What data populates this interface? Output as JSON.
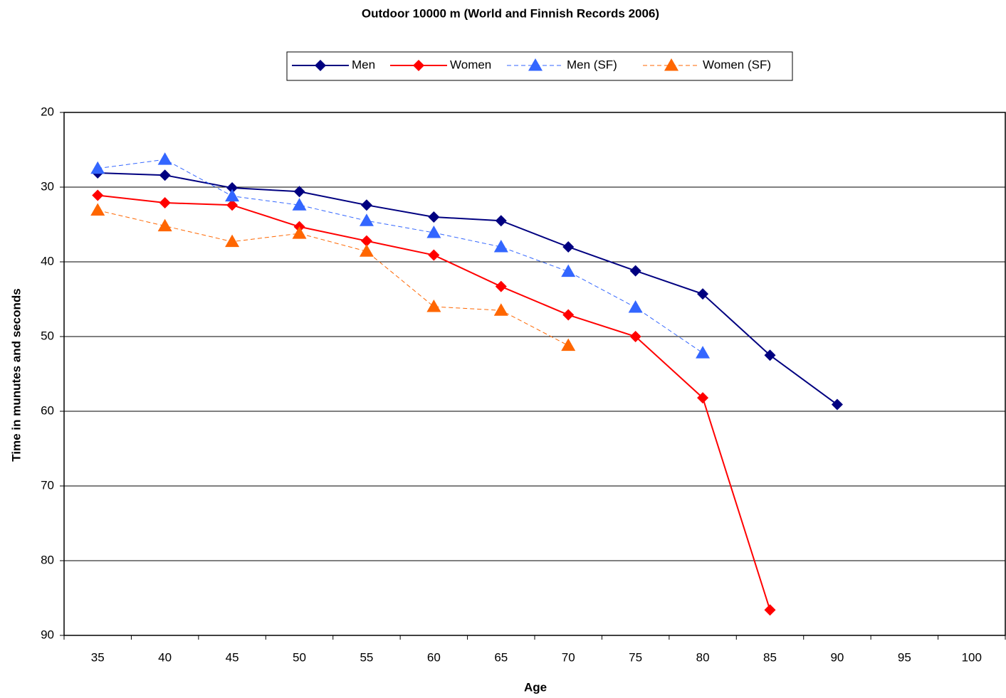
{
  "chart_data": {
    "type": "line",
    "title": "Outdoor 10000 m (World and Finnish Records 2006)",
    "x_label": "Age",
    "y_label": "Time in munutes and seconds",
    "categories": [
      35,
      40,
      45,
      50,
      55,
      60,
      65,
      70,
      75,
      80,
      85,
      90,
      95,
      100
    ],
    "ylim": [
      20,
      90
    ],
    "y_reversed": true,
    "yticks": [
      20,
      30,
      40,
      50,
      60,
      70,
      80,
      90
    ],
    "grid": true,
    "legend": "top",
    "series": [
      {
        "name": "Men",
        "color": "#000080",
        "marker": "diamond",
        "dashed": false,
        "values": [
          28.1,
          28.4,
          30.1,
          30.6,
          32.4,
          34.0,
          34.5,
          38.0,
          41.2,
          44.3,
          52.5,
          59.1,
          null,
          null
        ]
      },
      {
        "name": "Women",
        "color": "#ff0000",
        "marker": "diamond",
        "dashed": false,
        "values": [
          31.1,
          32.1,
          32.4,
          35.3,
          37.2,
          39.1,
          43.3,
          47.1,
          50.0,
          58.2,
          86.6,
          null,
          null,
          null
        ]
      },
      {
        "name": "Men (SF)",
        "color": "#3366ff",
        "marker": "triangle",
        "dashed": true,
        "values": [
          27.5,
          26.3,
          31.2,
          32.4,
          34.5,
          36.1,
          38.0,
          41.3,
          46.1,
          52.2,
          null,
          null,
          null,
          null
        ]
      },
      {
        "name": "Women (SF)",
        "color": "#ff6600",
        "marker": "triangle",
        "dashed": true,
        "values": [
          33.1,
          35.2,
          37.3,
          36.2,
          38.6,
          46.0,
          46.5,
          51.2,
          null,
          null,
          null,
          null,
          null,
          null
        ]
      }
    ]
  }
}
